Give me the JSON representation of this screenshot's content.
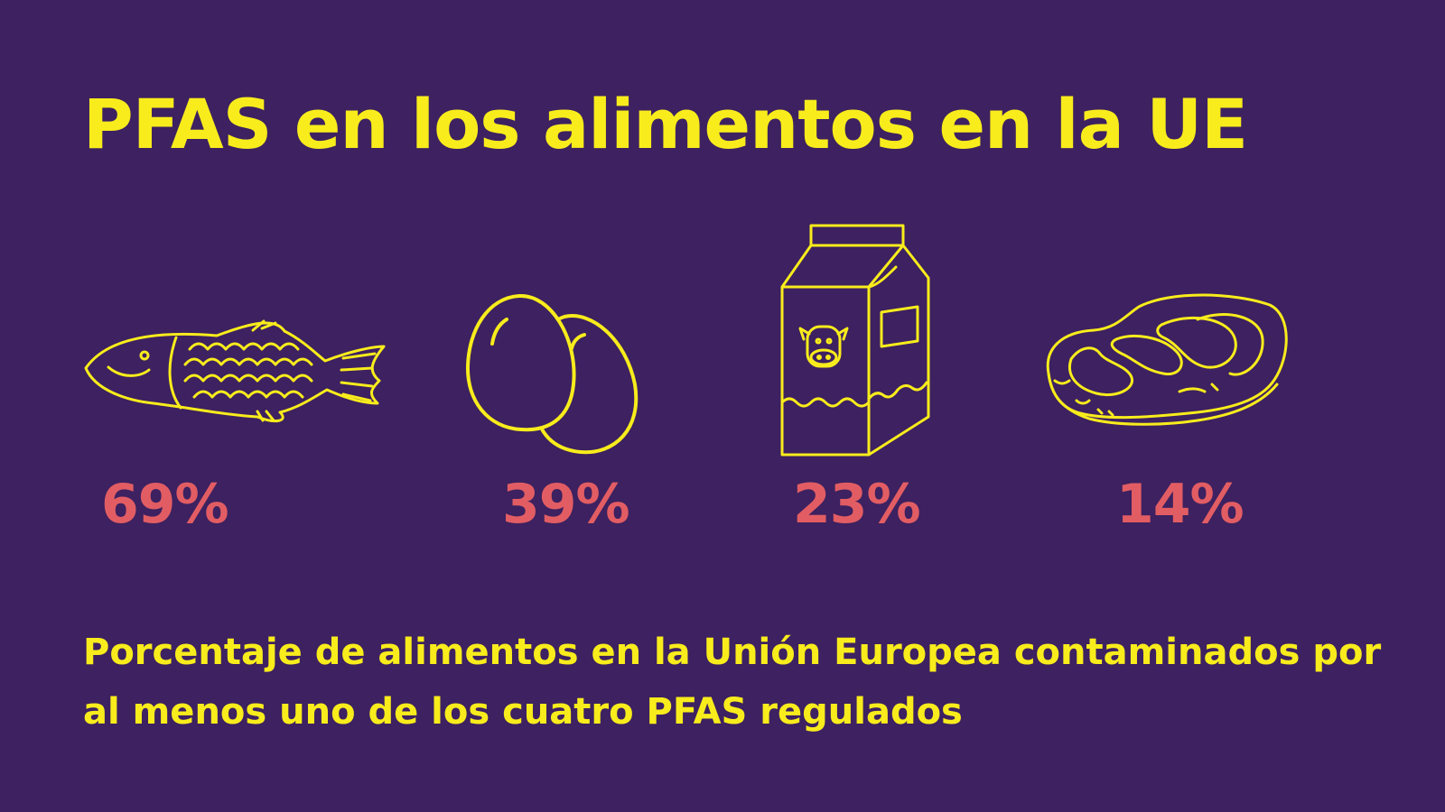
{
  "title": "PFAS en los alimentos en la UE",
  "colors": {
    "background": "#3d2160",
    "accent": "#f8ec1c",
    "percent": "#e25d63"
  },
  "items": [
    {
      "icon": "fish-icon",
      "percent": "69%"
    },
    {
      "icon": "eggs-icon",
      "percent": "39%"
    },
    {
      "icon": "milk-carton-icon",
      "percent": "23%"
    },
    {
      "icon": "steak-icon",
      "percent": "14%"
    }
  ],
  "caption": "Porcentaje de alimentos en la Unión Europea contaminados por al menos uno de los cuatro PFAS regulados"
}
